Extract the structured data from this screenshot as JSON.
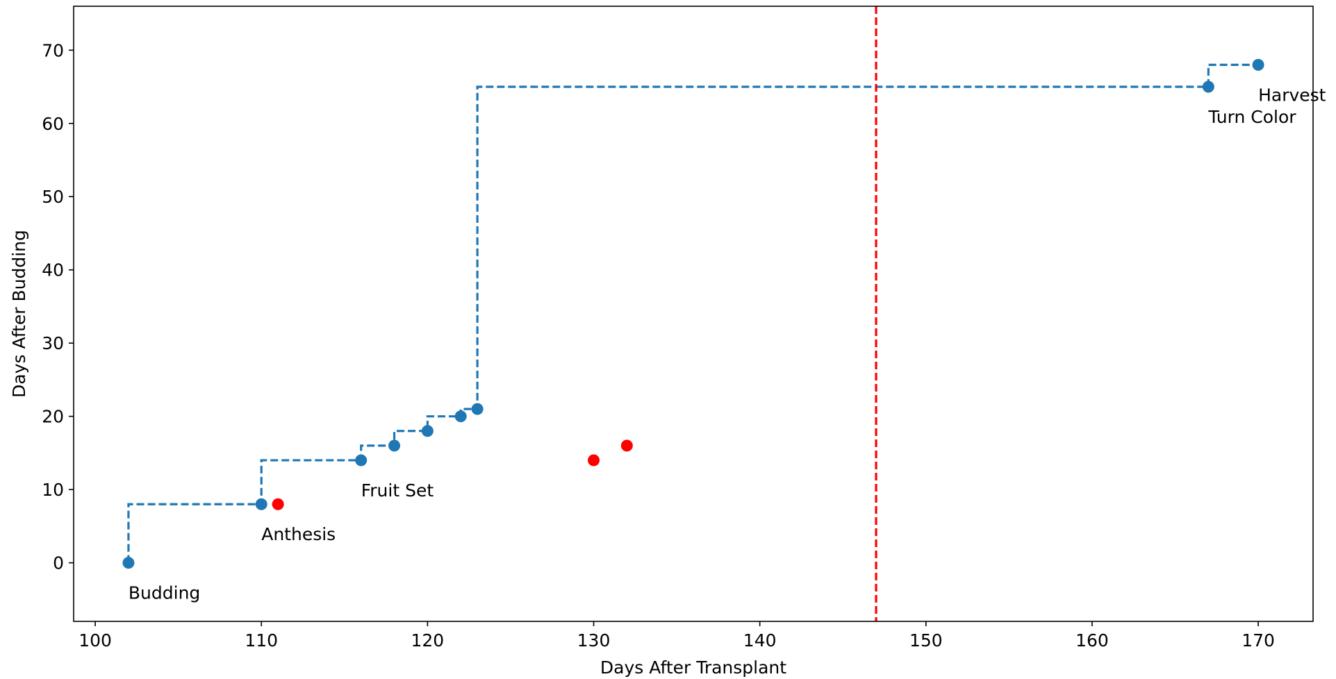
{
  "chart_data": {
    "type": "scatter",
    "title": "",
    "xlabel": "Days After Transplant",
    "ylabel": "Days After Budding",
    "xlim": [
      98.7,
      173.3
    ],
    "ylim": [
      -8,
      76
    ],
    "xticks": [
      100,
      110,
      120,
      130,
      140,
      150,
      160,
      170
    ],
    "yticks": [
      0,
      10,
      20,
      30,
      40,
      50,
      60,
      70
    ],
    "grid": false,
    "legend": "none",
    "series": [
      {
        "style": "step-dashed-with-markers",
        "color": "#1f77b4",
        "x": [
          102,
          110,
          116,
          118,
          120,
          122,
          123,
          167,
          170
        ],
        "y": [
          0,
          8,
          14,
          16,
          18,
          20,
          21,
          65,
          68
        ]
      },
      {
        "style": "markers",
        "color": "#ff0000",
        "x": [
          111,
          130,
          132
        ],
        "y": [
          8,
          14,
          16
        ]
      }
    ],
    "vline": {
      "x": 147,
      "color": "#ff0000",
      "style": "dashed"
    },
    "annotations": [
      {
        "text": "Budding",
        "x": 102,
        "y": 0
      },
      {
        "text": "Anthesis",
        "x": 110,
        "y": 8
      },
      {
        "text": "Fruit Set",
        "x": 116,
        "y": 14
      },
      {
        "text": "Turn Color",
        "x": 167,
        "y": 65
      },
      {
        "text": "Harvest",
        "x": 170,
        "y": 68
      }
    ]
  }
}
